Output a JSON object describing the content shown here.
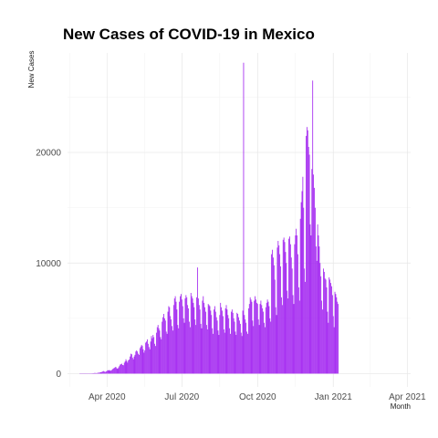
{
  "chart_data": {
    "type": "bar",
    "title": "New Cases of COVID-19 in Mexico",
    "xlabel": "Month",
    "ylabel": "New Cases",
    "x_start": "2020-02-28",
    "x_end": "2021-03-20",
    "xlim": [
      "2020-02-13",
      "2021-04-05"
    ],
    "ylim": [
      -1200,
      29000
    ],
    "grid": true,
    "legend": "none",
    "bar_color": "#a020f0",
    "x_ticks": [
      {
        "date": "2020-04-01",
        "label": "Apr 2020"
      },
      {
        "date": "2020-07-01",
        "label": "Jul 2020"
      },
      {
        "date": "2020-10-01",
        "label": "Oct 2020"
      },
      {
        "date": "2021-01-01",
        "label": "Jan 2021"
      },
      {
        "date": "2021-04-01",
        "label": "Apr 2021"
      }
    ],
    "y_ticks": [
      {
        "value": 0,
        "label": "0"
      },
      {
        "value": 10000,
        "label": "10000"
      },
      {
        "value": 20000,
        "label": "20000"
      }
    ],
    "values": [
      0,
      0,
      0,
      0,
      2,
      3,
      1,
      2,
      4,
      6,
      7,
      3,
      12,
      15,
      26,
      29,
      39,
      43,
      60,
      53,
      48,
      54,
      84,
      80,
      99,
      120,
      140,
      160,
      210,
      230,
      180,
      160,
      200,
      260,
      310,
      290,
      330,
      260,
      280,
      340,
      420,
      480,
      520,
      600,
      580,
      470,
      440,
      560,
      680,
      820,
      850,
      900,
      780,
      760,
      980,
      1100,
      1300,
      1150,
      1000,
      1200,
      1280,
      1550,
      1800,
      1750,
      1450,
      1300,
      1550,
      1700,
      2000,
      2100,
      2000,
      1800,
      1700,
      2300,
      2450,
      2600,
      2500,
      2200,
      1900,
      2100,
      2800,
      2900,
      3100,
      2700,
      2400,
      2200,
      2900,
      3400,
      3200,
      3500,
      3300,
      2700,
      2500,
      3700,
      4200,
      4400,
      4100,
      3900,
      3300,
      3100,
      4700,
      5100,
      5400,
      5000,
      4800,
      3800,
      3600,
      5600,
      6100,
      6000,
      5200,
      4900,
      4300,
      3900,
      6200,
      6800,
      7000,
      6500,
      5800,
      4400,
      4100,
      6500,
      7000,
      7200,
      6700,
      6100,
      5000,
      4600,
      6800,
      7100,
      6900,
      6200,
      5900,
      4700,
      4200,
      7300,
      7000,
      6800,
      6400,
      6000,
      4900,
      4400,
      6900,
      9600,
      6800,
      6200,
      5800,
      4500,
      4100,
      6600,
      7000,
      6400,
      6000,
      5600,
      4400,
      4000,
      6300,
      6200,
      6100,
      5700,
      5300,
      4100,
      3600,
      5800,
      6100,
      5600,
      5100,
      4800,
      3900,
      3500,
      5300,
      6400,
      6000,
      5700,
      5200,
      4000,
      3700,
      5900,
      6200,
      5800,
      5300,
      5000,
      4100,
      3600,
      5600,
      5800,
      5500,
      5000,
      4700,
      3800,
      3500,
      5500,
      5400,
      5100,
      4800,
      4500,
      3700,
      3400,
      5700,
      28115,
      5300,
      4900,
      4600,
      3800,
      3600,
      5900,
      6300,
      6900,
      6700,
      6500,
      4800,
      4300,
      6600,
      7000,
      6700,
      6400,
      6300,
      4900,
      4400,
      6300,
      6600,
      6200,
      5900,
      5600,
      4600,
      4200,
      6000,
      6400,
      6700,
      6500,
      6100,
      5000,
      4700,
      10800,
      11200,
      10500,
      9800,
      8500,
      6000,
      5300,
      11400,
      12000,
      11600,
      10800,
      9700,
      6900,
      6200,
      12100,
      12300,
      11900,
      11000,
      10000,
      7500,
      6800,
      12200,
      12400,
      11700,
      10500,
      9500,
      7100,
      6300,
      11700,
      12500,
      13100,
      12500,
      10800,
      7800,
      6600,
      14000,
      15500,
      16500,
      17800,
      15000,
      9500,
      8300,
      21500,
      22300,
      22000,
      20500,
      19800,
      13500,
      12500,
      18500,
      26500,
      18000,
      16800,
      15000,
      11500,
      10200,
      13500,
      12500,
      11500,
      10000,
      8800,
      6600,
      5800,
      9500,
      9200,
      8600,
      8500,
      7800,
      5600,
      4600,
      8700,
      8500,
      8200,
      7900,
      7100,
      5200,
      4200,
      7400,
      7200,
      6900,
      6500,
      6300
    ]
  }
}
